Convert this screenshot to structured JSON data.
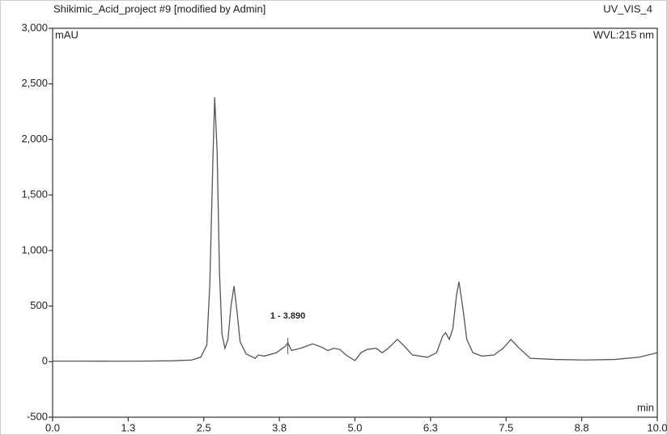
{
  "chart_data": {
    "type": "line",
    "title": "Shikimic_Acid_project #9 [modified by Admin]",
    "channel": "UV_VIS_4",
    "wavelength": "WVL:215 nm",
    "y_label": "mAU",
    "x_label": "min",
    "annotation": {
      "x": 3.89,
      "y": 170,
      "text": "1 - 3.890"
    },
    "color": "#555555",
    "xlim": [
      0,
      10
    ],
    "ylim": [
      -500,
      3000
    ],
    "xticks": [
      {
        "value": 0,
        "label": "0.0"
      },
      {
        "value": 1.25,
        "label": "1.3"
      },
      2.5,
      {
        "value": 3.75,
        "label": "3.8"
      },
      {
        "value": 5,
        "label": "5.0"
      },
      {
        "value": 6.25,
        "label": "6.3"
      },
      7.5,
      {
        "value": 8.75,
        "label": "8.8"
      },
      {
        "value": 10,
        "label": "10.0"
      }
    ],
    "yticks": [
      -500,
      0,
      500,
      {
        "value": 1000,
        "label": "1,000"
      },
      {
        "value": 1500,
        "label": "1,500"
      },
      {
        "value": 2000,
        "label": "2,000"
      },
      {
        "value": 2500,
        "label": "2,500"
      },
      {
        "value": 3000,
        "label": "3,000"
      }
    ],
    "x": [
      0,
      0.5,
      1,
      1.5,
      2,
      2.3,
      2.45,
      2.55,
      2.6,
      2.65,
      2.68,
      2.72,
      2.76,
      2.8,
      2.85,
      2.9,
      2.95,
      3.0,
      3.05,
      3.1,
      3.2,
      3.35,
      3.4,
      3.5,
      3.7,
      3.85,
      3.89,
      3.95,
      4.1,
      4.3,
      4.45,
      4.55,
      4.65,
      4.75,
      4.85,
      5.0,
      5.1,
      5.2,
      5.35,
      5.45,
      5.55,
      5.7,
      5.8,
      5.95,
      6.2,
      6.35,
      6.45,
      6.5,
      6.56,
      6.62,
      6.68,
      6.72,
      6.78,
      6.85,
      6.95,
      7.1,
      7.3,
      7.45,
      7.58,
      7.7,
      7.9,
      8.3,
      8.8,
      9.3,
      9.7,
      10
    ],
    "values": [
      5,
      5,
      4,
      5,
      8,
      15,
      40,
      150,
      700,
      1800,
      2380,
      1900,
      800,
      250,
      120,
      200,
      500,
      680,
      450,
      180,
      70,
      30,
      60,
      50,
      80,
      140,
      170,
      100,
      120,
      160,
      130,
      100,
      120,
      110,
      60,
      10,
      80,
      110,
      120,
      80,
      120,
      200,
      150,
      60,
      40,
      80,
      230,
      260,
      200,
      300,
      600,
      720,
      500,
      200,
      80,
      50,
      60,
      120,
      200,
      130,
      30,
      20,
      15,
      20,
      40,
      80
    ]
  }
}
